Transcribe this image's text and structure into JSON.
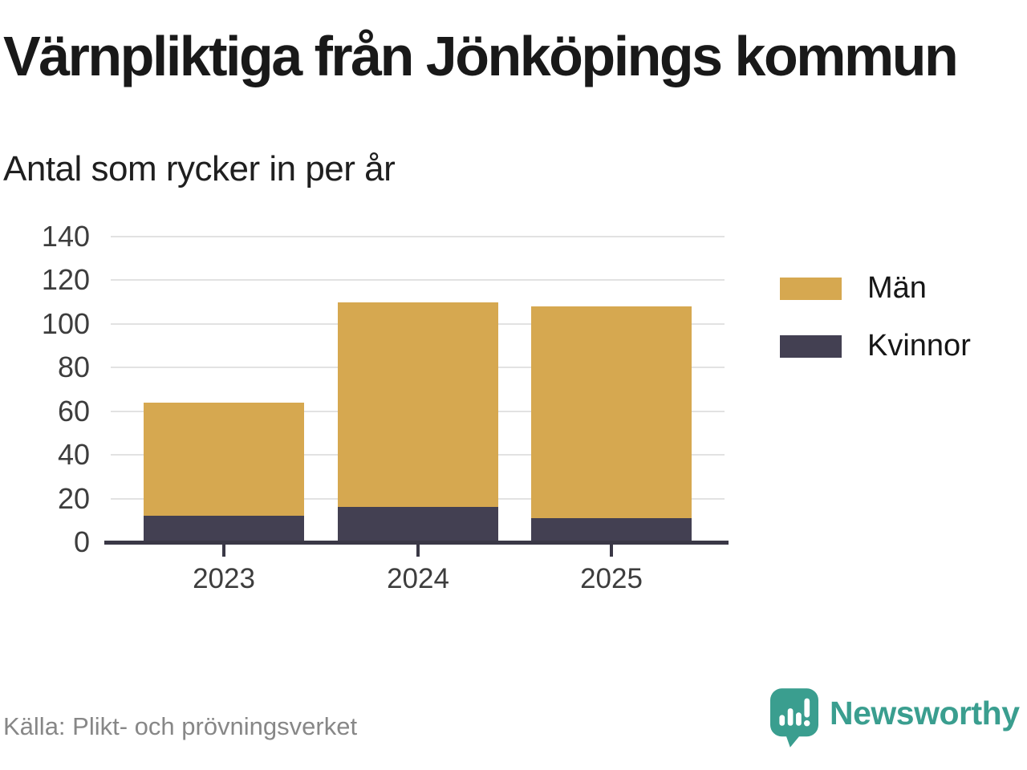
{
  "chart_data": {
    "type": "bar",
    "stacked": true,
    "title": "Värnpliktiga från Jönköpings kommun",
    "subtitle": "Antal som rycker in per år",
    "categories": [
      "2023",
      "2024",
      "2025"
    ],
    "series": [
      {
        "name": "Män",
        "color": "#d6a850",
        "values": [
          52,
          94,
          97
        ]
      },
      {
        "name": "Kvinnor",
        "color": "#434052",
        "values": [
          12,
          16,
          11
        ]
      }
    ],
    "stack_order_bottom_to_top": [
      "Kvinnor",
      "Män"
    ],
    "stacked_totals": [
      64,
      110,
      108
    ],
    "ylim": [
      0,
      140
    ],
    "yticks": [
      0,
      20,
      40,
      60,
      80,
      100,
      120,
      140
    ],
    "grid": "horizontal",
    "legend_position": "right"
  },
  "footer": {
    "source": "Källa: Plikt- och prövningsverket",
    "brand": "Newsworthy"
  },
  "icons": {
    "brand_icon": "newsworthy-speech-bubble-bar-chart-icon"
  },
  "colors": {
    "men": "#d6a850",
    "women": "#434052",
    "brand_teal": "#3a9e8f",
    "gridline": "#e2e2e2",
    "axis": "#3a3846",
    "title_text": "#191919",
    "tick_text": "#3d3d3d",
    "source_text": "#878787",
    "background": "#ffffff"
  }
}
